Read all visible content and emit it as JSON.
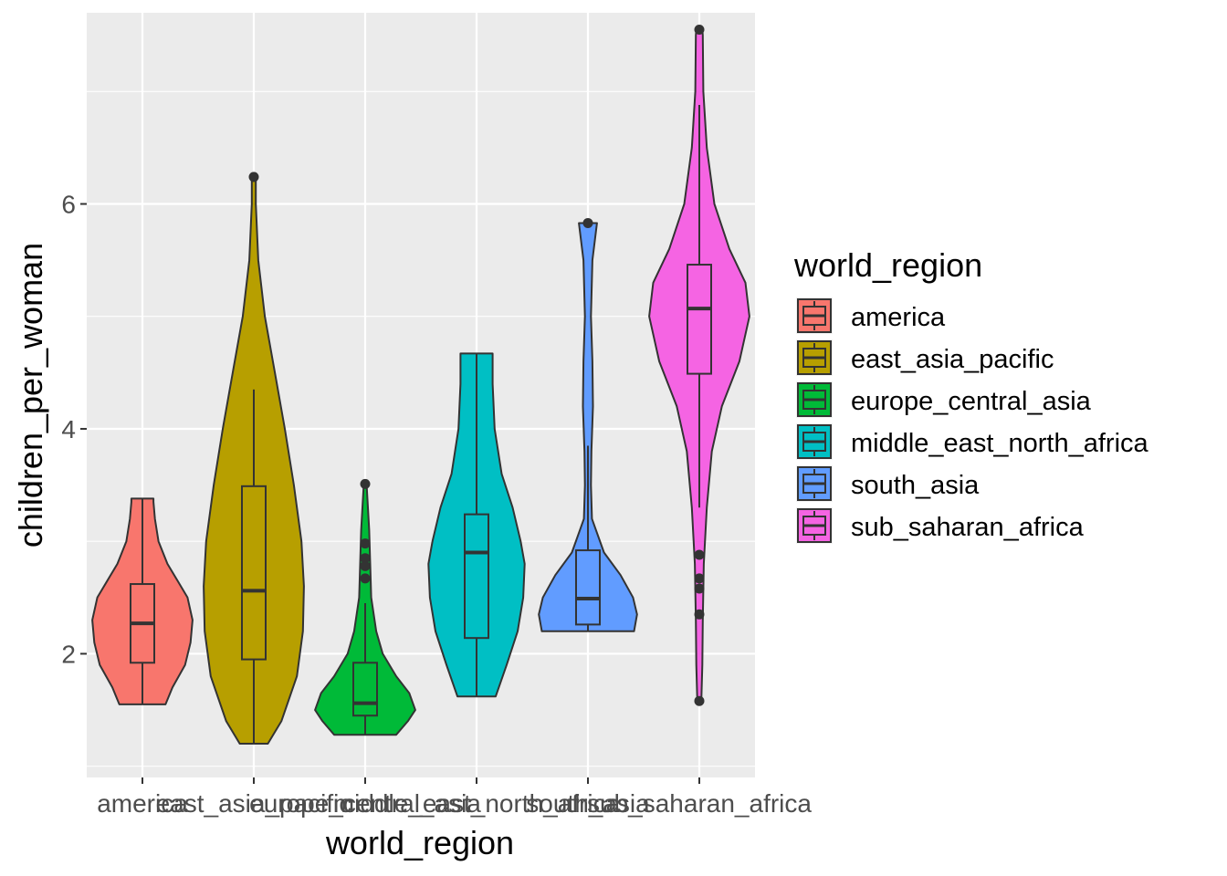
{
  "chart_data": {
    "type": "violin",
    "xlabel": "world_region",
    "ylabel": "children_per_woman",
    "ylim": [
      0.9,
      7.7
    ],
    "yticks": [
      2,
      4,
      6
    ],
    "grid": true,
    "legend": {
      "title": "world_region",
      "position": "right"
    },
    "categories": [
      "america",
      "east_asia_pacific",
      "europe_central_asia",
      "middle_east_north_africa",
      "south_asia",
      "sub_saharan_africa"
    ],
    "series": [
      {
        "name": "america",
        "color": "#F8766D",
        "violin": [
          [
            1.55,
            0.46
          ],
          [
            1.7,
            0.6
          ],
          [
            1.9,
            0.85
          ],
          [
            2.1,
            0.96
          ],
          [
            2.3,
            1.0
          ],
          [
            2.5,
            0.9
          ],
          [
            2.65,
            0.7
          ],
          [
            2.8,
            0.5
          ],
          [
            3.0,
            0.32
          ],
          [
            3.2,
            0.25
          ],
          [
            3.35,
            0.22
          ],
          [
            3.38,
            0.22
          ]
        ],
        "box": {
          "whisker_low": 1.55,
          "q1": 1.92,
          "median": 2.27,
          "q3": 2.62,
          "whisker_high": 3.38
        },
        "outliers": []
      },
      {
        "name": "east_asia_pacific",
        "color": "#B79F00",
        "violin": [
          [
            1.2,
            0.28
          ],
          [
            1.4,
            0.55
          ],
          [
            1.8,
            0.86
          ],
          [
            2.2,
            0.98
          ],
          [
            2.6,
            1.0
          ],
          [
            3.0,
            0.95
          ],
          [
            3.5,
            0.8
          ],
          [
            4.0,
            0.62
          ],
          [
            4.5,
            0.42
          ],
          [
            5.0,
            0.22
          ],
          [
            5.5,
            0.09
          ],
          [
            6.0,
            0.04
          ],
          [
            6.25,
            0.04
          ]
        ],
        "box": {
          "whisker_low": 1.2,
          "q1": 1.95,
          "median": 2.56,
          "q3": 3.49,
          "whisker_high": 4.35
        },
        "outliers": [
          6.24
        ]
      },
      {
        "name": "europe_central_asia",
        "color": "#00BA38",
        "violin": [
          [
            1.28,
            0.62
          ],
          [
            1.4,
            0.85
          ],
          [
            1.5,
            1.0
          ],
          [
            1.65,
            0.88
          ],
          [
            1.8,
            0.62
          ],
          [
            2.0,
            0.35
          ],
          [
            2.2,
            0.22
          ],
          [
            2.5,
            0.12
          ],
          [
            2.8,
            0.1
          ],
          [
            3.1,
            0.08
          ],
          [
            3.5,
            0.03
          ]
        ],
        "box": {
          "whisker_low": 1.28,
          "q1": 1.45,
          "median": 1.56,
          "q3": 1.92,
          "whisker_high": 2.45
        },
        "outliers": [
          2.67,
          2.78,
          2.85,
          2.98,
          3.51
        ]
      },
      {
        "name": "middle_east_north_africa",
        "color": "#00BFC4",
        "violin": [
          [
            1.62,
            0.38
          ],
          [
            1.9,
            0.6
          ],
          [
            2.2,
            0.82
          ],
          [
            2.5,
            0.93
          ],
          [
            2.8,
            0.96
          ],
          [
            3.0,
            0.88
          ],
          [
            3.3,
            0.72
          ],
          [
            3.6,
            0.5
          ],
          [
            4.0,
            0.36
          ],
          [
            4.4,
            0.32
          ],
          [
            4.67,
            0.32
          ]
        ],
        "box": {
          "whisker_low": 1.62,
          "q1": 2.14,
          "median": 2.9,
          "q3": 3.24,
          "whisker_high": 4.67
        },
        "outliers": []
      },
      {
        "name": "south_asia",
        "color": "#619CFF",
        "violin": [
          [
            2.2,
            0.92
          ],
          [
            2.35,
            0.98
          ],
          [
            2.5,
            0.9
          ],
          [
            2.7,
            0.65
          ],
          [
            2.9,
            0.32
          ],
          [
            3.2,
            0.08
          ],
          [
            3.5,
            0.06
          ],
          [
            3.8,
            0.07
          ],
          [
            4.2,
            0.1
          ],
          [
            4.6,
            0.09
          ],
          [
            5.0,
            0.06
          ],
          [
            5.5,
            0.09
          ],
          [
            5.83,
            0.18
          ]
        ],
        "box": {
          "whisker_low": 2.2,
          "q1": 2.26,
          "median": 2.49,
          "q3": 2.92,
          "whisker_high": 3.85
        },
        "outliers": [
          5.83
        ]
      },
      {
        "name": "sub_saharan_africa",
        "color": "#F564E3",
        "violin": [
          [
            1.58,
            0.04
          ],
          [
            1.9,
            0.06
          ],
          [
            2.3,
            0.07
          ],
          [
            2.8,
            0.09
          ],
          [
            3.3,
            0.15
          ],
          [
            3.8,
            0.25
          ],
          [
            4.2,
            0.45
          ],
          [
            4.6,
            0.8
          ],
          [
            5.0,
            1.0
          ],
          [
            5.3,
            0.92
          ],
          [
            5.6,
            0.6
          ],
          [
            6.0,
            0.3
          ],
          [
            6.5,
            0.15
          ],
          [
            7.0,
            0.08
          ],
          [
            7.5,
            0.07
          ],
          [
            7.55,
            0.06
          ]
        ],
        "box": {
          "whisker_low": 3.3,
          "q1": 4.49,
          "median": 5.07,
          "q3": 5.46,
          "whisker_high": 6.88
        },
        "outliers": [
          7.55,
          2.88,
          2.67,
          2.58,
          2.35,
          1.58
        ]
      }
    ]
  }
}
